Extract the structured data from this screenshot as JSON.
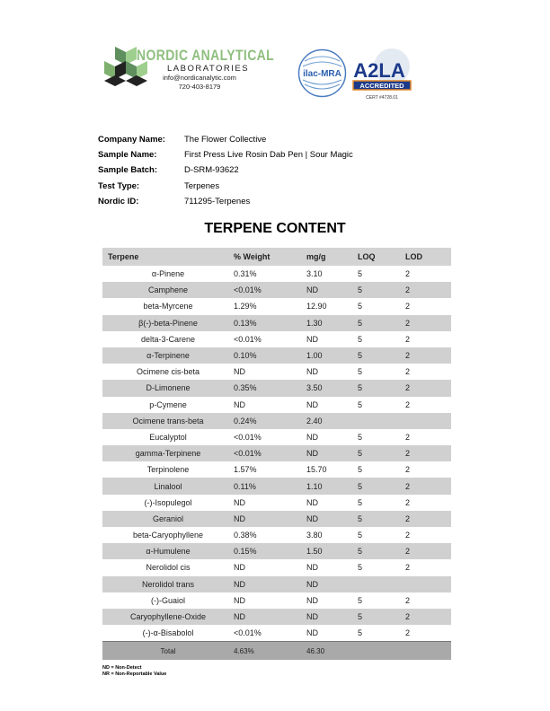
{
  "header": {
    "brand": "NORDIC ANALYTICAL",
    "sub": "LABORATORIES",
    "email": "info@nordicanalytic.com",
    "phone": "720-403-8179",
    "ilac": "ilac-MRA",
    "a2la": "A2LA",
    "accredited": "ACCREDITED",
    "cert": "CERT #4728.01"
  },
  "info": [
    {
      "label": "Company Name:",
      "value": "The Flower Collective"
    },
    {
      "label": "Sample Name:",
      "value": "First Press Live Rosin Dab Pen | Sour Magic"
    },
    {
      "label": "Sample Batch:",
      "value": "D-SRM-93622"
    },
    {
      "label": "Test Type:",
      "value": "Terpenes"
    },
    {
      "label": "Nordic ID:",
      "value": "711295-Terpenes"
    }
  ],
  "title": "TERPENE CONTENT",
  "table": {
    "columns": [
      "Terpene",
      "%  Weight",
      "mg/g",
      "LOQ",
      "LOD"
    ],
    "rows": [
      [
        "α-Pinene",
        "0.31%",
        "3.10",
        "5",
        "2"
      ],
      [
        "Camphene",
        "<0.01%",
        "ND",
        "5",
        "2"
      ],
      [
        "beta-Myrcene",
        "1.29%",
        "12.90",
        "5",
        "2"
      ],
      [
        "β(-)-beta-Pinene",
        "0.13%",
        "1.30",
        "5",
        "2"
      ],
      [
        "delta-3-Carene",
        "<0.01%",
        "ND",
        "5",
        "2"
      ],
      [
        "α-Terpinene",
        "0.10%",
        "1.00",
        "5",
        "2"
      ],
      [
        "Ocimene cis-beta",
        "ND",
        "ND",
        "5",
        "2"
      ],
      [
        "D-Limonene",
        "0.35%",
        "3.50",
        "5",
        "2"
      ],
      [
        "p-Cymene",
        "ND",
        "ND",
        "5",
        "2"
      ],
      [
        "Ocimene trans-beta",
        "0.24%",
        "2.40",
        "",
        ""
      ],
      [
        "Eucalyptol",
        "<0.01%",
        "ND",
        "5",
        "2"
      ],
      [
        "gamma-Terpinene",
        "<0.01%",
        "ND",
        "5",
        "2"
      ],
      [
        "Terpinolene",
        "1.57%",
        "15.70",
        "5",
        "2"
      ],
      [
        "Linalool",
        "0.11%",
        "1.10",
        "5",
        "2"
      ],
      [
        "(-)-Isopulegol",
        "ND",
        "ND",
        "5",
        "2"
      ],
      [
        "Geraniol",
        "ND",
        "ND",
        "5",
        "2"
      ],
      [
        "beta-Caryophyllene",
        "0.38%",
        "3.80",
        "5",
        "2"
      ],
      [
        "α-Humulene",
        "0.15%",
        "1.50",
        "5",
        "2"
      ],
      [
        "Nerolidol cis",
        "ND",
        "ND",
        "5",
        "2"
      ],
      [
        "Nerolidol trans",
        "ND",
        "ND",
        "",
        ""
      ],
      [
        "(-)-Guaiol",
        "ND",
        "ND",
        "5",
        "2"
      ],
      [
        "Caryophyllene-Oxide",
        "ND",
        "ND",
        "5",
        "2"
      ],
      [
        "(-)-α-Bisabolol",
        "<0.01%",
        "ND",
        "5",
        "2"
      ]
    ],
    "total": [
      "Total",
      "4.63%",
      "46.30",
      "",
      ""
    ]
  },
  "notes": [
    "ND = Non-Detect",
    "NR = Non-Reportable Value"
  ]
}
